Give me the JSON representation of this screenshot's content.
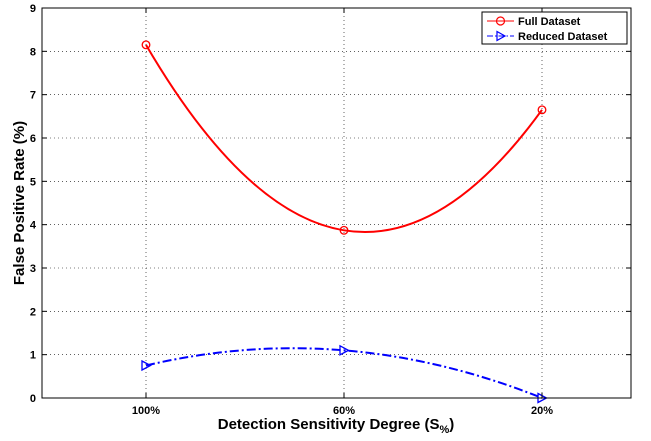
{
  "chart_data": {
    "type": "line",
    "categories": [
      "100%",
      "60%",
      "20%"
    ],
    "xlabel": "Detection Sensitivity Degree (S",
    "xlabel_subscript": "%",
    "xlabel_close": ")",
    "ylabel": "False Positive Rate (%)",
    "ylim": [
      0,
      9
    ],
    "yticks": [
      "0",
      "1",
      "2",
      "3",
      "4",
      "5",
      "6",
      "7",
      "8",
      "9"
    ],
    "grid": true,
    "legend_position": "top-right",
    "series": [
      {
        "name": "Full Dataset",
        "values": [
          8.15,
          3.87,
          6.65
        ],
        "color": "#ff0000",
        "marker": "circle",
        "line_style": "solid"
      },
      {
        "name": "Reduced Dataset",
        "values": [
          0.75,
          1.1,
          0.0
        ],
        "color": "#0000ff",
        "marker": "triangle-right",
        "line_style": "dash-dot"
      }
    ]
  }
}
